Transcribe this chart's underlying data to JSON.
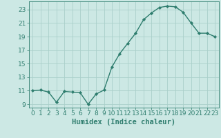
{
  "x": [
    0,
    1,
    2,
    3,
    4,
    5,
    6,
    7,
    8,
    9,
    10,
    11,
    12,
    13,
    14,
    15,
    16,
    17,
    18,
    19,
    20,
    21,
    22,
    23
  ],
  "y": [
    11,
    11.1,
    10.8,
    9.3,
    10.9,
    10.8,
    10.7,
    9.0,
    10.5,
    11.1,
    14.5,
    16.5,
    18.0,
    19.5,
    21.5,
    22.5,
    23.3,
    23.5,
    23.4,
    22.6,
    21.0,
    19.5,
    19.5,
    19.0
  ],
  "line_color": "#2e7d6e",
  "marker": "D",
  "marker_size": 2.2,
  "background_color": "#cce8e4",
  "grid_color": "#aacfca",
  "xlabel": "Humidex (Indice chaleur)",
  "ylim": [
    8.5,
    24.2
  ],
  "xlim": [
    -0.5,
    23.5
  ],
  "yticks": [
    9,
    11,
    13,
    15,
    17,
    19,
    21,
    23
  ],
  "xticks": [
    0,
    1,
    2,
    3,
    4,
    5,
    6,
    7,
    8,
    9,
    10,
    11,
    12,
    13,
    14,
    15,
    16,
    17,
    18,
    19,
    20,
    21,
    22,
    23
  ],
  "tick_fontsize": 6.5,
  "xlabel_fontsize": 7.5,
  "line_width": 1.0
}
